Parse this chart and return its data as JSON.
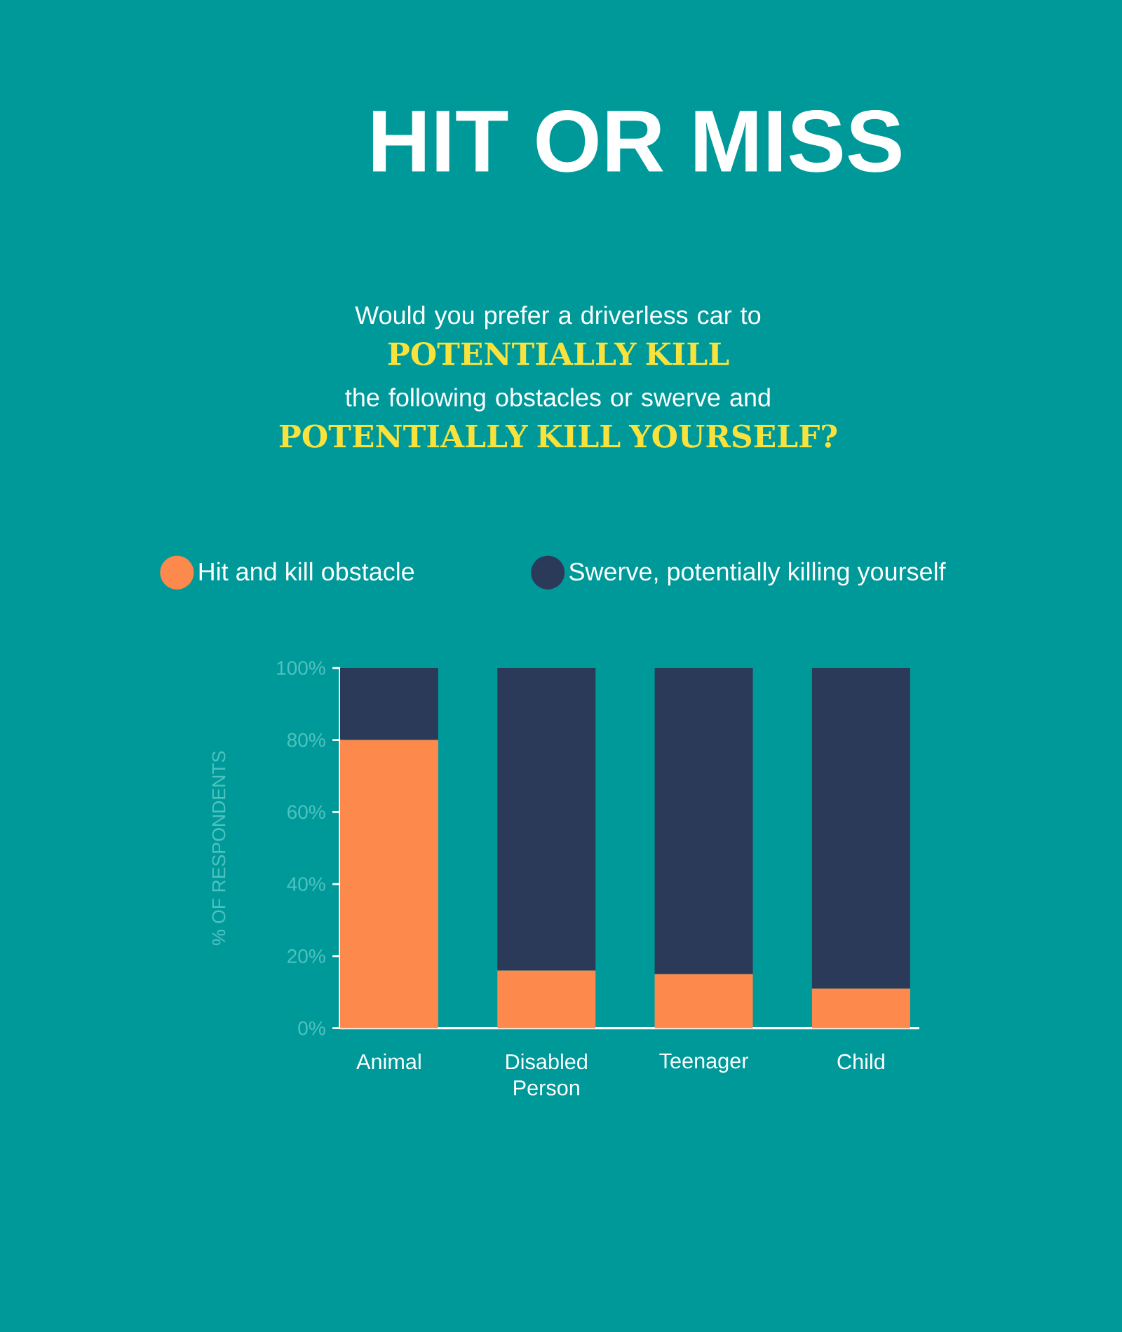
{
  "chart_data": {
    "type": "bar",
    "title": "HIT OR MISS",
    "subtitle": "Would you prefer a driverless car to **POTENTIALLY KILL** the following obstacles or swerve and **POTENTIALLY KILL YOURSELF?**",
    "ylabel": "% OF RESPONDENTS",
    "categories": [
      "Animal",
      "Disabled Person",
      "Teenager",
      "Child"
    ],
    "stacked": true,
    "series": [
      {
        "name": "Hit and kill obstacle",
        "color": "#fd8a4c",
        "values": [
          80,
          16,
          15,
          11
        ]
      },
      {
        "name": "Swerve, potentially killing yourself",
        "color": "#2c3a59",
        "values": [
          20,
          84,
          85,
          89
        ]
      }
    ],
    "ylim": [
      0,
      100
    ],
    "yticks": [
      {
        "value": 0,
        "label": "0%"
      },
      {
        "value": 20,
        "label": "20%"
      },
      {
        "value": 40,
        "label": "40%"
      },
      {
        "value": 60,
        "label": "60%"
      },
      {
        "value": 80,
        "label": "80%"
      },
      {
        "value": 100,
        "label": "100%"
      }
    ],
    "legend": "top"
  }
}
